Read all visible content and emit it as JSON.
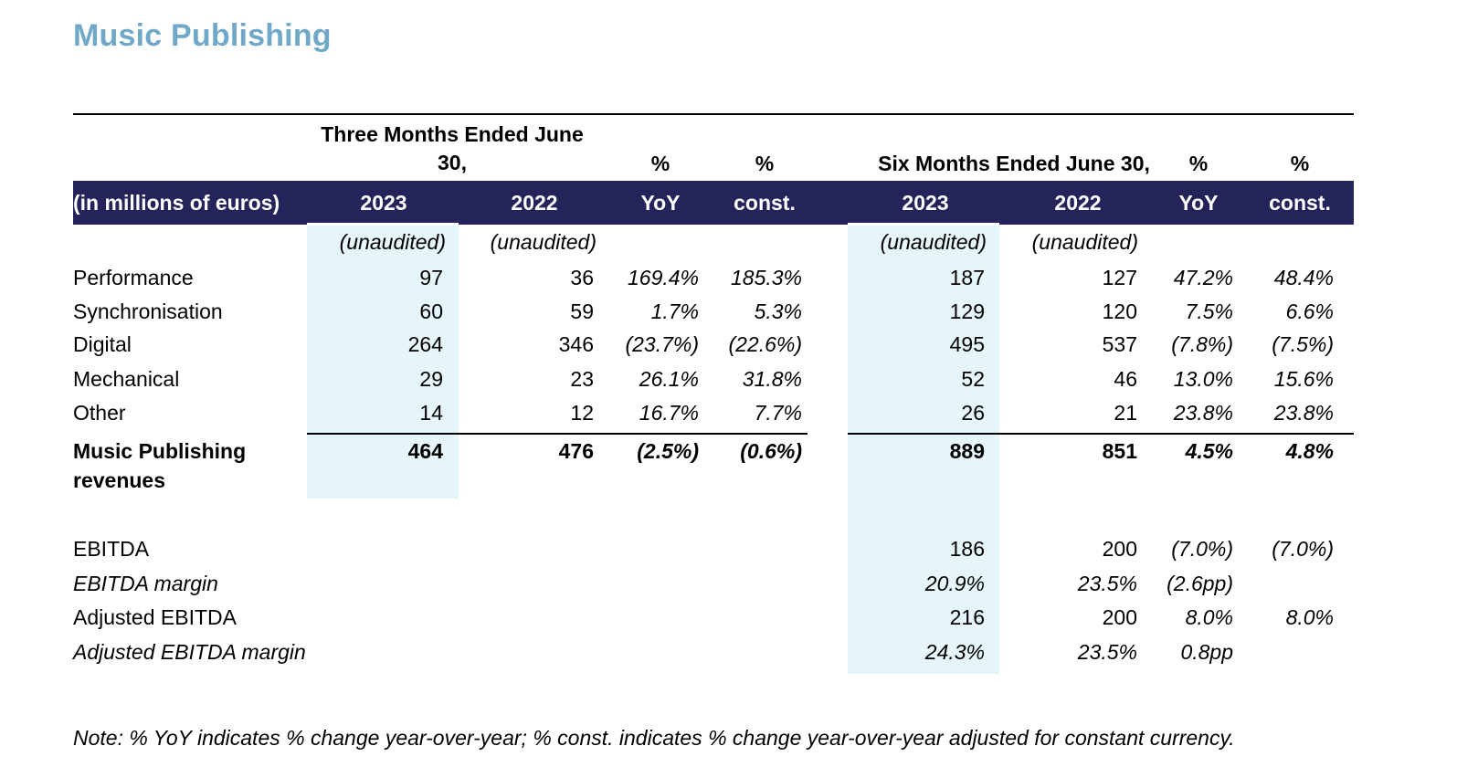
{
  "title": "Music Publishing",
  "header": {
    "group1": "Three Months Ended June 30,",
    "group2": "Six Months Ended June 30,",
    "pct": "%",
    "row_label": "(in millions of euros)",
    "cols": [
      "2023",
      "2022",
      "YoY",
      "const.",
      "2023",
      "2022",
      "YoY",
      "const."
    ],
    "unaudited": "(unaudited)"
  },
  "rows": [
    {
      "label": "Performance",
      "values": [
        "97",
        "36",
        "169.4%",
        "185.3%",
        "187",
        "127",
        "47.2%",
        "48.4%"
      ]
    },
    {
      "label": "Synchronisation",
      "values": [
        "60",
        "59",
        "1.7%",
        "5.3%",
        "129",
        "120",
        "7.5%",
        "6.6%"
      ]
    },
    {
      "label": "Digital",
      "values": [
        "264",
        "346",
        "(23.7%)",
        "(22.6%)",
        "495",
        "537",
        "(7.8%)",
        "(7.5%)"
      ]
    },
    {
      "label": "Mechanical",
      "values": [
        "29",
        "23",
        "26.1%",
        "31.8%",
        "52",
        "46",
        "13.0%",
        "15.6%"
      ]
    },
    {
      "label": "Other",
      "values": [
        "14",
        "12",
        "16.7%",
        "7.7%",
        "26",
        "21",
        "23.8%",
        "23.8%"
      ]
    }
  ],
  "total": {
    "label_line1": "Music Publishing",
    "label_line2": "revenues",
    "values": [
      "464",
      "476",
      "(2.5%)",
      "(0.6%)",
      "889",
      "851",
      "4.5%",
      "4.8%"
    ]
  },
  "ebitda_rows": [
    {
      "label": "EBITDA",
      "values": [
        "186",
        "200",
        "(7.0%)",
        "(7.0%)"
      ]
    },
    {
      "label": "EBITDA margin",
      "values": [
        "20.9%",
        "23.5%",
        "(2.6pp)",
        ""
      ]
    },
    {
      "label": "Adjusted EBITDA",
      "values": [
        "216",
        "200",
        "8.0%",
        "8.0%"
      ]
    },
    {
      "label": "Adjusted EBITDA margin",
      "values": [
        "24.3%",
        "23.5%",
        "0.8pp",
        ""
      ]
    }
  ],
  "note": "Note: % YoY indicates % change year-over-year; % const. indicates % change year-over-year adjusted for constant currency.",
  "colors": {
    "title": "#6fa8c8",
    "header_band": "#24235a",
    "highlight": "#e6f5fa"
  }
}
